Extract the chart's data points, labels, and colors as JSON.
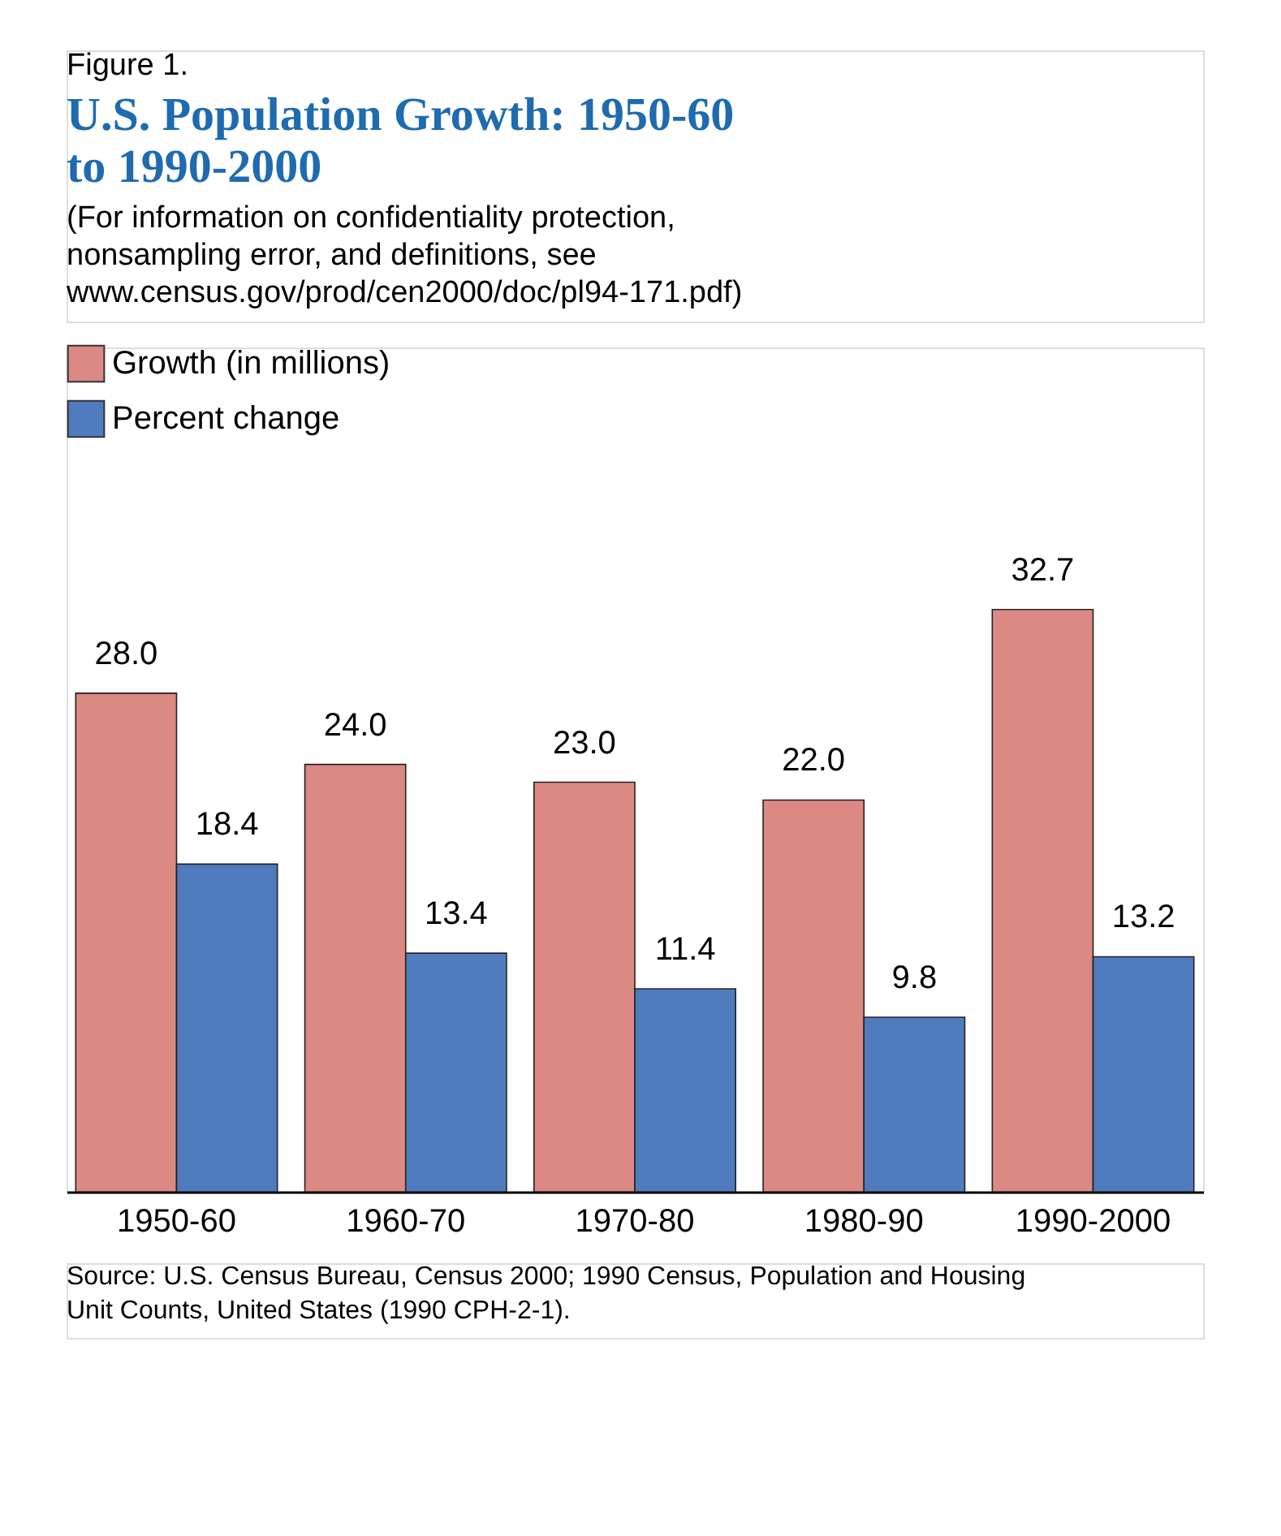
{
  "chart_data": {
    "type": "bar",
    "title": "U.S. Population Growth:  1950-60 to 1990-2000",
    "subtitle": "(For information on confidentiality protection, nonsampling error, and definitions, see www.census.gov/prod/cen2000/doc/pl94-171.pdf)",
    "categories": [
      "1950-60",
      "1960-70",
      "1970-80",
      "1980-90",
      "1990-2000"
    ],
    "series": [
      {
        "name": "Growth (in millions)",
        "color": "#dc8983",
        "values": [
          28.0,
          24.0,
          23.0,
          22.0,
          32.7
        ],
        "value_labels": [
          "28.0",
          "24.0",
          "23.0",
          "22.0",
          "32.7"
        ]
      },
      {
        "name": "Percent change",
        "color": "#4f7cbf",
        "values": [
          18.4,
          13.4,
          11.4,
          9.8,
          13.2
        ],
        "value_labels": [
          "18.4",
          "13.4",
          "11.4",
          "9.8",
          "13.2"
        ]
      }
    ],
    "legend": "top left",
    "grid": false,
    "annotations": [
      "Figure 1.",
      "Source:  U.S. Census Bureau, Census 2000; 1990 Census, Population and Housing Unit Counts, United States (1990 CPH-2-1)."
    ]
  }
}
